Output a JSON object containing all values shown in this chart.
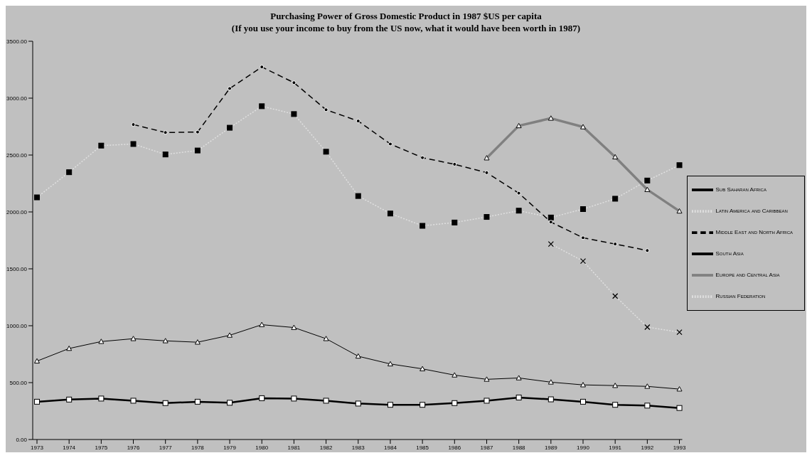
{
  "chart_data": {
    "type": "line",
    "title": "Purchasing Power of Gross Domestic Product in 1987 $US per capita",
    "subtitle": "(If you use your income to buy from the US now, what it would have been worth in 1987)",
    "categories": [
      "1973",
      "1974",
      "1975",
      "1976",
      "1977",
      "1978",
      "1979",
      "1980",
      "1981",
      "1982",
      "1983",
      "1984",
      "1985",
      "1986",
      "1987",
      "1988",
      "1989",
      "1990",
      "1991",
      "1992",
      "1993"
    ],
    "series": [
      {
        "name": "Sub Saharan Africa",
        "color": "#000000",
        "marker": "triangle",
        "line_style": "solid",
        "values": [
          689,
          800,
          861,
          886,
          867,
          855,
          916,
          1009,
          984,
          886,
          732,
          664,
          621,
          566,
          529,
          541,
          504,
          480,
          474,
          467,
          443
        ]
      },
      {
        "name": "Latin America and Caribbean",
        "color": "#e0e0e0",
        "marker": "square",
        "line_style": "dotted",
        "values": [
          2128,
          2349,
          2583,
          2597,
          2505,
          2540,
          2740,
          2929,
          2860,
          2529,
          2140,
          1986,
          1878,
          1907,
          1956,
          2011,
          1951,
          2025,
          2116,
          2276,
          2411
        ]
      },
      {
        "name": "Middle East and North Africa",
        "color": "#000000",
        "marker": "circle",
        "line_style": "dashed",
        "values": [
          null,
          null,
          null,
          2768,
          2698,
          2702,
          3085,
          3274,
          3136,
          2898,
          2799,
          2597,
          2477,
          2419,
          2345,
          2165,
          1911,
          1773,
          1718,
          1661,
          null
        ]
      },
      {
        "name": "South Asia",
        "color": "#000000",
        "marker": "square",
        "line_style": "solid",
        "values": [
          332,
          351,
          360,
          341,
          320,
          332,
          323,
          363,
          360,
          341,
          316,
          305,
          305,
          320,
          341,
          369,
          353,
          332,
          305,
          298,
          277
        ]
      },
      {
        "name": "Europe and Central Asia",
        "color": "#808080",
        "marker": "triangle",
        "line_style": "solid",
        "values": [
          null,
          null,
          null,
          null,
          null,
          null,
          null,
          null,
          null,
          null,
          null,
          null,
          null,
          null,
          2474,
          2757,
          2823,
          2747,
          2483,
          2196,
          2007
        ]
      },
      {
        "name": "Russian Federation",
        "color": "#e0e0e0",
        "marker": "cross",
        "line_style": "dotted",
        "values": [
          null,
          null,
          null,
          null,
          null,
          null,
          null,
          null,
          null,
          null,
          null,
          null,
          null,
          null,
          null,
          null,
          1718,
          1568,
          1261,
          988,
          943
        ]
      }
    ],
    "ylim": [
      0,
      3500
    ],
    "yticks": [
      {
        "value": 0,
        "label": "0.00"
      },
      {
        "value": 500,
        "label": "500.00"
      },
      {
        "value": 1000,
        "label": "1000.00"
      },
      {
        "value": 1500,
        "label": "1500.00"
      },
      {
        "value": 2000,
        "label": "2000.00"
      },
      {
        "value": 2500,
        "label": "2500.00"
      },
      {
        "value": 3000,
        "label": "3000.00"
      },
      {
        "value": 3500,
        "label": "3500.00"
      }
    ],
    "grid": false,
    "legend": "right"
  }
}
